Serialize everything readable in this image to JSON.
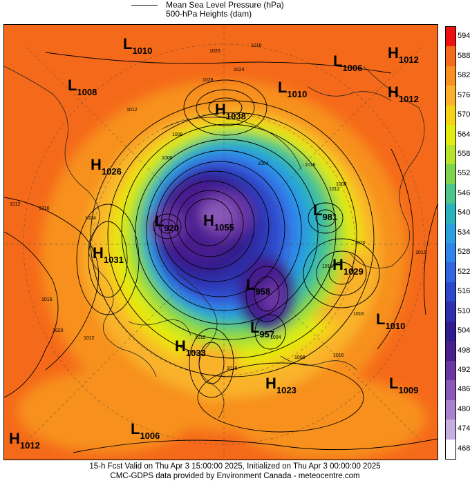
{
  "legend": {
    "line_label": "Mean Sea Level Pressure (hPa)",
    "fill_label": "500-hPa Heights (dam)"
  },
  "colorbar": {
    "levels": [
      "594",
      "588",
      "582",
      "576",
      "570",
      "564",
      "558",
      "552",
      "546",
      "540",
      "534",
      "528",
      "522",
      "516",
      "510",
      "504",
      "498",
      "492",
      "486",
      "480",
      "474",
      "468"
    ],
    "colors": [
      "#ee1111",
      "#f56a1a",
      "#f7901e",
      "#f9b22a",
      "#f4d316",
      "#e3ec10",
      "#b7e32a",
      "#7ed44c",
      "#4ec58a",
      "#2ab3bb",
      "#2c9fe0",
      "#2f86ea",
      "#3465e0",
      "#2e48cc",
      "#2e30ae",
      "#301c8e",
      "#4a1f8e",
      "#6a36a4",
      "#8a58b8",
      "#a982ce",
      "#c7aee0",
      "#ffffff"
    ]
  },
  "centers": [
    {
      "type": "L",
      "value": "1010"
    },
    {
      "type": "L",
      "value": "1008"
    },
    {
      "type": "H",
      "value": "1038"
    },
    {
      "type": "L",
      "value": "1010"
    },
    {
      "type": "L",
      "value": "1006"
    },
    {
      "type": "H",
      "value": "1012"
    },
    {
      "type": "H",
      "value": "1012"
    },
    {
      "type": "H",
      "value": "1026"
    },
    {
      "type": "L",
      "value": "920"
    },
    {
      "type": "H",
      "value": "1055"
    },
    {
      "type": "L",
      "value": "981"
    },
    {
      "type": "H",
      "value": "1031"
    },
    {
      "type": "H",
      "value": "1029"
    },
    {
      "type": "L",
      "value": "958"
    },
    {
      "type": "L",
      "value": "957"
    },
    {
      "type": "L",
      "value": "1010"
    },
    {
      "type": "H",
      "value": "1033"
    },
    {
      "type": "H",
      "value": "1023"
    },
    {
      "type": "L",
      "value": "1009"
    },
    {
      "type": "H",
      "value": "1012"
    },
    {
      "type": "L",
      "value": "1006"
    }
  ],
  "isobar_labels": [
    "1020",
    "1016",
    "1024",
    "1028",
    "1012",
    "1008",
    "1004",
    "1000",
    "1016",
    "1012",
    "1012",
    "1016",
    "1024",
    "1020",
    "1016",
    "1008",
    "1012",
    "1016",
    "1020",
    "1016",
    "1012",
    "1012",
    "1016",
    "1004",
    "1008",
    "1016",
    "1008"
  ],
  "footer": {
    "line1": "15-h Fcst Valid on Thu Apr  3 15:00:00 2025, Initialized on Thu Apr  3 00:00:00 2025",
    "line2": "CMC-GDPS data provided by Environment Canada - meteocentre.com"
  }
}
